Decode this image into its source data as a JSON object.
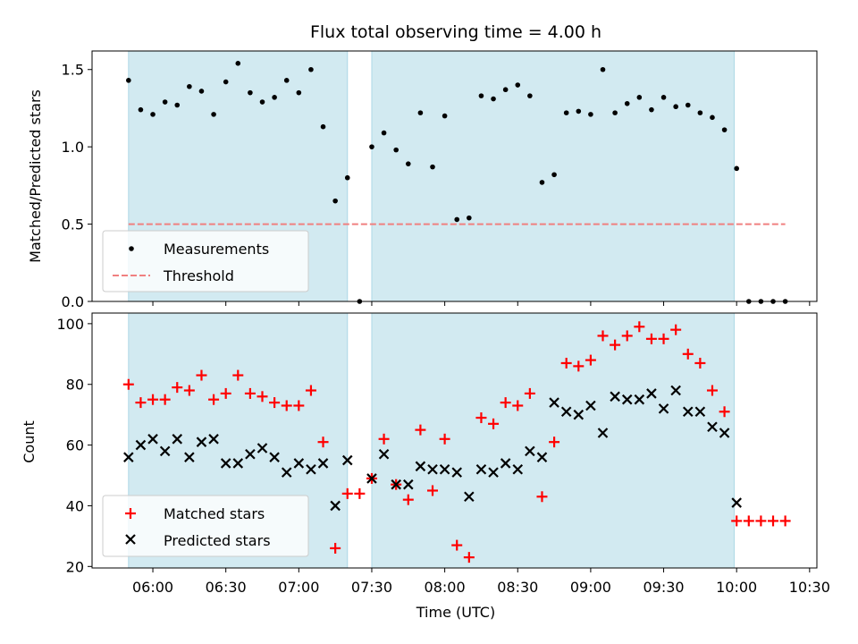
{
  "chart_data": {
    "title": "Flux total observing time = 4.00 h",
    "xlabel": "Time (UTC)",
    "x_ticks": [
      "06:00",
      "06:30",
      "07:00",
      "07:30",
      "08:00",
      "08:30",
      "09:00",
      "09:30",
      "10:00",
      "10:30"
    ],
    "colors": {
      "shade": "#add8e6",
      "measurements": "#000000",
      "threshold": "#f08080",
      "matched": "#ff0000",
      "predicted": "#000000"
    },
    "shaded_intervals": [
      [
        "05:50",
        "07:20"
      ],
      [
        "07:30",
        "09:59"
      ]
    ],
    "charts": [
      {
        "type": "scatter",
        "ylabel": "Matched/Predicted stars",
        "ylim": [
          0,
          1.62
        ],
        "y_ticks": [
          "0.0",
          "0.5",
          "1.0",
          "1.5"
        ],
        "legend": {
          "location": "lower-left",
          "entries": [
            "Measurements",
            "Threshold"
          ]
        },
        "threshold": {
          "name": "Threshold",
          "value": 0.5,
          "x_range": [
            "05:50",
            "10:20"
          ]
        },
        "series": [
          {
            "name": "Measurements",
            "marker": "dot",
            "x": [
              "05:50",
              "05:55",
              "06:00",
              "06:05",
              "06:10",
              "06:15",
              "06:20",
              "06:25",
              "06:30",
              "06:35",
              "06:40",
              "06:45",
              "06:50",
              "06:55",
              "07:00",
              "07:05",
              "07:10",
              "07:15",
              "07:20",
              "07:25",
              "07:30",
              "07:35",
              "07:40",
              "07:45",
              "07:50",
              "07:55",
              "08:00",
              "08:05",
              "08:10",
              "08:15",
              "08:20",
              "08:25",
              "08:30",
              "08:35",
              "08:40",
              "08:45",
              "08:50",
              "08:55",
              "09:00",
              "09:05",
              "09:10",
              "09:15",
              "09:20",
              "09:25",
              "09:30",
              "09:35",
              "09:40",
              "09:45",
              "09:50",
              "09:55",
              "10:00",
              "10:05",
              "10:10",
              "10:15",
              "10:20"
            ],
            "y": [
              1.43,
              1.24,
              1.21,
              1.29,
              1.27,
              1.39,
              1.36,
              1.21,
              1.42,
              1.54,
              1.35,
              1.29,
              1.32,
              1.43,
              1.35,
              1.5,
              1.13,
              0.65,
              0.8,
              0.0,
              1.0,
              1.09,
              0.98,
              0.89,
              1.22,
              0.87,
              1.2,
              0.53,
              0.54,
              1.33,
              1.31,
              1.37,
              1.4,
              1.33,
              0.77,
              0.82,
              1.22,
              1.23,
              1.21,
              1.5,
              1.22,
              1.28,
              1.32,
              1.24,
              1.32,
              1.26,
              1.27,
              1.22,
              1.19,
              1.11,
              0.86,
              0.0,
              0.0,
              0.0,
              0.0
            ]
          }
        ]
      },
      {
        "type": "scatter",
        "ylabel": "Count",
        "ylim": [
          19.5,
          103.5
        ],
        "y_ticks": [
          "20",
          "40",
          "60",
          "80",
          "100"
        ],
        "legend": {
          "location": "lower-left",
          "entries": [
            "Matched stars",
            "Predicted stars"
          ]
        },
        "series": [
          {
            "name": "Matched stars",
            "marker": "plus",
            "x": [
              "05:50",
              "05:55",
              "06:00",
              "06:05",
              "06:10",
              "06:15",
              "06:20",
              "06:25",
              "06:30",
              "06:35",
              "06:40",
              "06:45",
              "06:50",
              "06:55",
              "07:00",
              "07:05",
              "07:10",
              "07:15",
              "07:20",
              "07:25",
              "07:30",
              "07:35",
              "07:40",
              "07:45",
              "07:50",
              "07:55",
              "08:00",
              "08:05",
              "08:10",
              "08:15",
              "08:20",
              "08:25",
              "08:30",
              "08:35",
              "08:40",
              "08:45",
              "08:50",
              "08:55",
              "09:00",
              "09:05",
              "09:10",
              "09:15",
              "09:20",
              "09:25",
              "09:30",
              "09:35",
              "09:40",
              "09:45",
              "09:50",
              "09:55",
              "10:00",
              "10:05",
              "10:10",
              "10:15",
              "10:20"
            ],
            "y": [
              80,
              74,
              75,
              75,
              79,
              78,
              83,
              75,
              77,
              83,
              77,
              76,
              74,
              73,
              73,
              78,
              61,
              26,
              44,
              44,
              49,
              62,
              47,
              42,
              65,
              45,
              62,
              27,
              23,
              69,
              67,
              74,
              73,
              77,
              43,
              61,
              87,
              86,
              88,
              96,
              93,
              96,
              99,
              95,
              95,
              98,
              90,
              87,
              78,
              71,
              35,
              35,
              35,
              35,
              35
            ]
          },
          {
            "name": "Predicted stars",
            "marker": "x",
            "x": [
              "05:50",
              "05:55",
              "06:00",
              "06:05",
              "06:10",
              "06:15",
              "06:20",
              "06:25",
              "06:30",
              "06:35",
              "06:40",
              "06:45",
              "06:50",
              "06:55",
              "07:00",
              "07:05",
              "07:10",
              "07:15",
              "07:20",
              "07:30",
              "07:35",
              "07:40",
              "07:45",
              "07:50",
              "07:55",
              "08:00",
              "08:05",
              "08:10",
              "08:15",
              "08:20",
              "08:25",
              "08:30",
              "08:35",
              "08:40",
              "08:45",
              "08:50",
              "08:55",
              "09:00",
              "09:05",
              "09:10",
              "09:15",
              "09:20",
              "09:25",
              "09:30",
              "09:35",
              "09:40",
              "09:45",
              "09:50",
              "09:55",
              "10:00"
            ],
            "y": [
              56,
              60,
              62,
              58,
              62,
              56,
              61,
              62,
              54,
              54,
              57,
              59,
              56,
              51,
              54,
              52,
              54,
              40,
              55,
              49,
              57,
              47,
              47,
              53,
              52,
              52,
              51,
              43,
              52,
              51,
              54,
              52,
              58,
              56,
              74,
              71,
              70,
              73,
              64,
              76,
              75,
              75,
              77,
              72,
              78,
              71,
              71,
              66,
              64,
              41
            ]
          }
        ]
      }
    ]
  }
}
